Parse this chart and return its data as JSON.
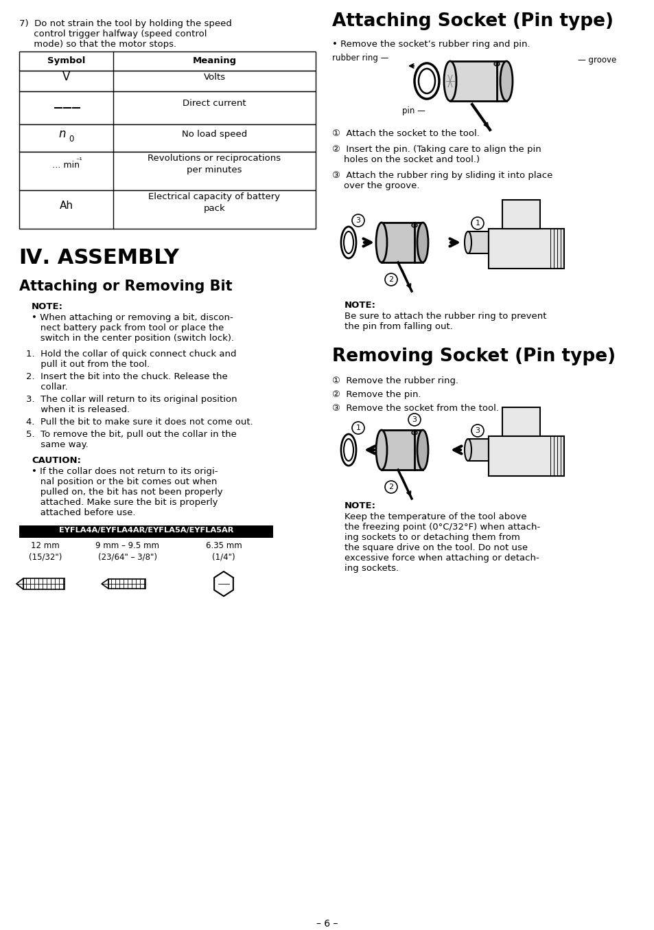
{
  "page_bg": "#ffffff",
  "title_assembly": "Ⅳ. ASSEMBLY",
  "subtitle_bit": "Attaching or Removing Bit",
  "subtitle_attach_socket": "Attaching Socket (Pin type)",
  "subtitle_remove_socket": "Removing Socket (Pin type)",
  "page_number": "– 6 –",
  "item7_text_1": "7)  Do not strain the tool by holding the speed",
  "item7_text_2": "     control trigger halfway (speed control",
  "item7_text_3": "     mode) so that the motor stops.",
  "table_headers": [
    "Symbol",
    "Meaning"
  ],
  "table_row_heights": [
    30,
    48,
    40,
    56,
    56
  ],
  "note_label": "NOTE:",
  "caution_label": "CAUTION:",
  "note_bit_lines": [
    "• When attaching or removing a bit, discon-",
    "   nect battery pack from tool or place the",
    "   switch in the center position (switch lock)."
  ],
  "steps_bit": [
    [
      "1.  Hold the collar of quick connect chuck and",
      "     pull it out from the tool."
    ],
    [
      "2.  Insert the bit into the chuck. Release the",
      "     collar."
    ],
    [
      "3.  The collar will return to its original position",
      "     when it is released."
    ],
    [
      "4.  Pull the bit to make sure it does not come out."
    ],
    [
      "5.  To remove the bit, pull out the collar in the",
      "     same way."
    ]
  ],
  "caution_bit_lines": [
    "• If the collar does not return to its origi-",
    "   nal position or the bit comes out when",
    "   pulled on, the bit has not been properly",
    "   attached. Make sure the bit is properly",
    "   attached before use."
  ],
  "bit_label": "EYFLA4A/EYFLA4AR/EYFLA5A/EYFLA5AR",
  "bit_sizes": [
    "12 mm\n(15/32\")",
    "9 mm – 9.5 mm\n(23/64\" – 3/8\")",
    "6.35 mm\n(1/4\")"
  ],
  "attach_bullet": "• Remove the socket’s rubber ring and pin.",
  "label_rubber_ring": "rubber ring",
  "label_groove": "groove",
  "label_pin": "pin",
  "attach_steps": [
    [
      "①  Attach the socket to the tool."
    ],
    [
      "②  Insert the pin. (Taking care to align the pin",
      "    holes on the socket and tool.)"
    ],
    [
      "③  Attach the rubber ring by sliding it into place",
      "    over the groove."
    ]
  ],
  "attach_note_lines": [
    "Be sure to attach the rubber ring to prevent",
    "the pin from falling out."
  ],
  "remove_steps": [
    "①  Remove the rubber ring.",
    "②  Remove the pin.",
    "③  Remove the socket from the tool."
  ],
  "remove_note_lines": [
    "Keep the temperature of the tool above",
    "the freezing point (0°C/32°F) when attach-",
    "ing sockets to or detaching them from",
    "the square drive on the tool. Do not use",
    "excessive force when attaching or detach-",
    "ing sockets."
  ]
}
